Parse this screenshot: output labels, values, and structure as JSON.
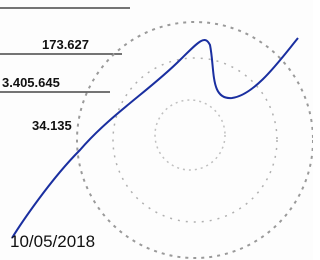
{
  "figures": [
    "173.627",
    "3.405.645",
    "34.135"
  ],
  "date": "10/05/2018"
}
